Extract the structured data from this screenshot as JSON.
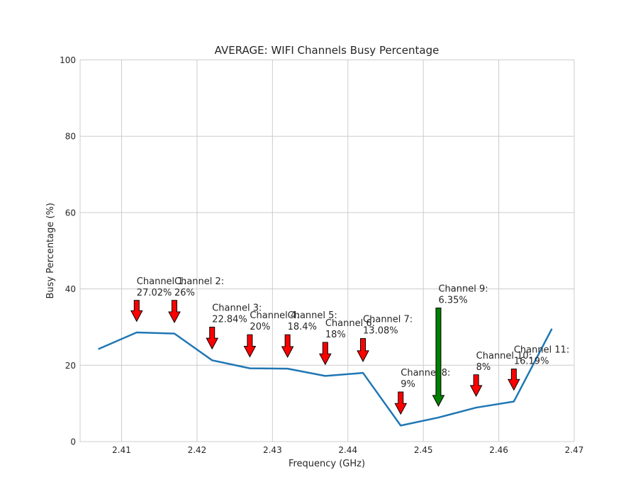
{
  "chart_data": {
    "type": "line",
    "title": "AVERAGE: WIFI Channels Busy Percentage",
    "xlabel": "Frequency (GHz)",
    "ylabel": "Busy Percentage (%)",
    "xlim": [
      2.4045,
      2.47
    ],
    "ylim": [
      0,
      100
    ],
    "grid": true,
    "x_ticks": [
      "2.41",
      "2.42",
      "2.43",
      "2.44",
      "2.45",
      "2.46",
      "2.47"
    ],
    "y_ticks": [
      "0",
      "20",
      "40",
      "60",
      "80",
      "100"
    ],
    "series": [
      {
        "color": "#1f77b4",
        "x": [
          2.407,
          2.412,
          2.417,
          2.422,
          2.427,
          2.432,
          2.437,
          2.442,
          2.447,
          2.452,
          2.457,
          2.462,
          2.467
        ],
        "y": [
          24.3,
          28.6,
          28.3,
          21.3,
          19.2,
          19.1,
          17.2,
          18.0,
          4.2,
          6.3,
          8.9,
          10.5,
          29.4
        ]
      }
    ],
    "annotations": [
      {
        "x": 2.412,
        "channel": "Channel 1:",
        "value": "27.02%",
        "color": "#ff0000",
        "arrow_top": 37,
        "arrow_tip": 31.5
      },
      {
        "x": 2.417,
        "channel": "Channel 2:",
        "value": "26%",
        "color": "#ff0000",
        "arrow_top": 37,
        "arrow_tip": 31.2
      },
      {
        "x": 2.422,
        "channel": "Channel 3:",
        "value": "22.84%",
        "color": "#ff0000",
        "arrow_top": 30,
        "arrow_tip": 24.3
      },
      {
        "x": 2.427,
        "channel": "Channel 4:",
        "value": "20%",
        "color": "#ff0000",
        "arrow_top": 28,
        "arrow_tip": 22.2
      },
      {
        "x": 2.432,
        "channel": "Channel 5:",
        "value": "18.4%",
        "color": "#ff0000",
        "arrow_top": 28,
        "arrow_tip": 22.1
      },
      {
        "x": 2.437,
        "channel": "Channel 6:",
        "value": "18%",
        "color": "#ff0000",
        "arrow_top": 26,
        "arrow_tip": 20.2
      },
      {
        "x": 2.442,
        "channel": "Channel 7:",
        "value": "13.08%",
        "color": "#ff0000",
        "arrow_top": 27,
        "arrow_tip": 21.0
      },
      {
        "x": 2.447,
        "channel": "Channel 8:",
        "value": "9%",
        "color": "#ff0000",
        "arrow_top": 13,
        "arrow_tip": 7.2
      },
      {
        "x": 2.452,
        "channel": "Channel 9:",
        "value": "6.35%",
        "color": "#008000",
        "arrow_top": 35,
        "arrow_tip": 9.3
      },
      {
        "x": 2.457,
        "channel": "Channel 10:",
        "value": "8%",
        "color": "#ff0000",
        "arrow_top": 17.5,
        "arrow_tip": 11.9
      },
      {
        "x": 2.462,
        "channel": "Channel 11:",
        "value": "16.19%",
        "color": "#ff0000",
        "arrow_top": 19,
        "arrow_tip": 13.5
      }
    ]
  }
}
